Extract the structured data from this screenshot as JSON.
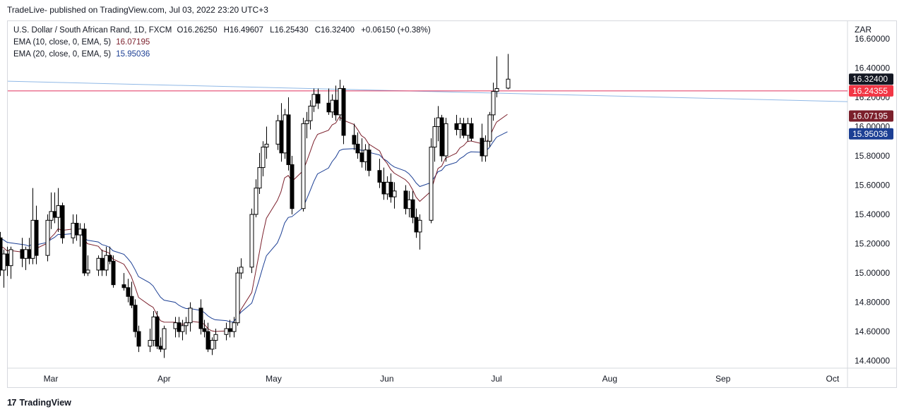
{
  "header": {
    "published": "TradeLive- published on TradingView.com, Jul 03, 2022 23:20 UTC+3"
  },
  "legend": {
    "symbol": "U.S. Dollar / South African Rand, 1D, FXCM",
    "o_label": "O",
    "o": "16.26250",
    "h_label": "H",
    "h": "16.49607",
    "l_label": "L",
    "l": "16.25430",
    "c_label": "C",
    "c": "16.32400",
    "change": "+0.06150 (+0.38%)",
    "ema10_label": "EMA (10, close, 0, EMA, 5)",
    "ema10_value": "16.07195",
    "ema20_label": "EMA (20, close, 0, EMA, 5)",
    "ema20_value": "15.95036"
  },
  "footer": {
    "brand": "TradingView",
    "logo_text": "17"
  },
  "colors": {
    "ema10": "#7b1f2b",
    "ema20": "#1c3f94",
    "horizontal_line": "#e0315b",
    "trend_line": "#90b8e6",
    "up_candle": "#ffffff",
    "down_candle": "#000000"
  },
  "chart_data": {
    "type": "candlestick",
    "y_axis_unit": "ZAR",
    "ylim": [
      14.35,
      16.72
    ],
    "y_ticks": [
      "16.60000",
      "16.40000",
      "16.20000",
      "16.00000",
      "15.80000",
      "15.60000",
      "15.40000",
      "15.20000",
      "15.00000",
      "14.80000",
      "14.60000",
      "14.40000"
    ],
    "x_ticks": [
      "Mar",
      "Apr",
      "May",
      "Jun",
      "Jul",
      "Aug",
      "Sep",
      "Oct"
    ],
    "price_labels": [
      {
        "text": "16.32400",
        "value": 16.324,
        "color": "#131722"
      },
      {
        "text": "16.24355",
        "value": 16.24355,
        "color": "#f23645"
      },
      {
        "text": "16.07195",
        "value": 16.07195,
        "color": "#7b1f2b"
      },
      {
        "text": "15.95036",
        "value": 15.95036,
        "color": "#1c3f94"
      }
    ],
    "horizontal_line": {
      "value": 16.24355
    },
    "trend_line": {
      "start": [
        "2022-02-15",
        16.31
      ],
      "end": [
        "2022-10-13",
        16.17
      ]
    },
    "series": [
      {
        "date": "2022-02-15",
        "o": 15.24,
        "h": 15.28,
        "l": 14.98,
        "c": 15.02
      },
      {
        "date": "2022-02-16",
        "o": 15.02,
        "h": 15.16,
        "l": 14.9,
        "c": 15.13
      },
      {
        "date": "2022-02-17",
        "o": 15.13,
        "h": 15.18,
        "l": 14.98,
        "c": 15.05
      },
      {
        "date": "2022-02-18",
        "o": 15.05,
        "h": 15.18,
        "l": 14.96,
        "c": 15.16
      },
      {
        "date": "2022-02-21",
        "o": 15.16,
        "h": 15.24,
        "l": 15.04,
        "c": 15.1
      },
      {
        "date": "2022-02-22",
        "o": 15.1,
        "h": 15.18,
        "l": 15.02,
        "c": 15.16
      },
      {
        "date": "2022-02-23",
        "o": 15.16,
        "h": 15.24,
        "l": 15.06,
        "c": 15.1
      },
      {
        "date": "2022-02-24",
        "o": 15.1,
        "h": 15.58,
        "l": 15.06,
        "c": 15.36
      },
      {
        "date": "2022-02-25",
        "o": 15.36,
        "h": 15.46,
        "l": 15.06,
        "c": 15.12
      },
      {
        "date": "2022-02-28",
        "o": 15.12,
        "h": 15.4,
        "l": 15.08,
        "c": 15.36
      },
      {
        "date": "2022-03-01",
        "o": 15.36,
        "h": 15.55,
        "l": 15.3,
        "c": 15.42
      },
      {
        "date": "2022-03-02",
        "o": 15.42,
        "h": 15.55,
        "l": 15.34,
        "c": 15.38
      },
      {
        "date": "2022-03-03",
        "o": 15.38,
        "h": 15.58,
        "l": 15.28,
        "c": 15.46
      },
      {
        "date": "2022-03-04",
        "o": 15.46,
        "h": 15.48,
        "l": 15.2,
        "c": 15.24
      },
      {
        "date": "2022-03-07",
        "o": 15.24,
        "h": 15.4,
        "l": 15.2,
        "c": 15.34
      },
      {
        "date": "2022-03-08",
        "o": 15.34,
        "h": 15.4,
        "l": 15.22,
        "c": 15.26
      },
      {
        "date": "2022-03-09",
        "o": 15.26,
        "h": 15.34,
        "l": 15.18,
        "c": 15.3
      },
      {
        "date": "2022-03-10",
        "o": 15.3,
        "h": 15.34,
        "l": 14.98,
        "c": 15.0
      },
      {
        "date": "2022-03-11",
        "o": 15.0,
        "h": 15.12,
        "l": 14.98,
        "c": 15.02
      },
      {
        "date": "2022-03-14",
        "o": 15.02,
        "h": 15.12,
        "l": 14.98,
        "c": 15.1
      },
      {
        "date": "2022-03-15",
        "o": 15.1,
        "h": 15.16,
        "l": 14.98,
        "c": 15.02
      },
      {
        "date": "2022-03-16",
        "o": 15.02,
        "h": 15.18,
        "l": 14.98,
        "c": 15.12
      },
      {
        "date": "2022-03-17",
        "o": 15.12,
        "h": 15.18,
        "l": 15.06,
        "c": 15.08
      },
      {
        "date": "2022-03-18",
        "o": 15.08,
        "h": 15.12,
        "l": 14.9,
        "c": 14.92
      },
      {
        "date": "2022-03-21",
        "o": 14.92,
        "h": 15.0,
        "l": 14.88,
        "c": 14.9
      },
      {
        "date": "2022-03-22",
        "o": 14.9,
        "h": 14.96,
        "l": 14.8,
        "c": 14.84
      },
      {
        "date": "2022-03-23",
        "o": 14.84,
        "h": 14.94,
        "l": 14.76,
        "c": 14.78
      },
      {
        "date": "2022-03-24",
        "o": 14.78,
        "h": 14.82,
        "l": 14.56,
        "c": 14.6
      },
      {
        "date": "2022-03-25",
        "o": 14.6,
        "h": 14.64,
        "l": 14.46,
        "c": 14.5
      },
      {
        "date": "2022-03-28",
        "o": 14.5,
        "h": 14.62,
        "l": 14.46,
        "c": 14.54
      },
      {
        "date": "2022-03-29",
        "o": 14.54,
        "h": 14.74,
        "l": 14.5,
        "c": 14.7
      },
      {
        "date": "2022-03-30",
        "o": 14.7,
        "h": 14.74,
        "l": 14.48,
        "c": 14.5
      },
      {
        "date": "2022-03-31",
        "o": 14.5,
        "h": 14.56,
        "l": 14.46,
        "c": 14.48
      },
      {
        "date": "2022-04-01",
        "o": 14.48,
        "h": 14.64,
        "l": 14.42,
        "c": 14.62
      },
      {
        "date": "2022-04-04",
        "o": 14.62,
        "h": 14.7,
        "l": 14.56,
        "c": 14.66
      },
      {
        "date": "2022-04-05",
        "o": 14.66,
        "h": 14.7,
        "l": 14.56,
        "c": 14.6
      },
      {
        "date": "2022-04-06",
        "o": 14.6,
        "h": 14.68,
        "l": 14.54,
        "c": 14.64
      },
      {
        "date": "2022-04-07",
        "o": 14.64,
        "h": 14.7,
        "l": 14.58,
        "c": 14.66
      },
      {
        "date": "2022-04-08",
        "o": 14.66,
        "h": 14.8,
        "l": 14.6,
        "c": 14.76
      },
      {
        "date": "2022-04-11",
        "o": 14.76,
        "h": 14.82,
        "l": 14.58,
        "c": 14.62
      },
      {
        "date": "2022-04-12",
        "o": 14.62,
        "h": 14.68,
        "l": 14.56,
        "c": 14.6
      },
      {
        "date": "2022-04-13",
        "o": 14.6,
        "h": 14.66,
        "l": 14.46,
        "c": 14.48
      },
      {
        "date": "2022-04-14",
        "o": 14.48,
        "h": 14.56,
        "l": 14.44,
        "c": 14.54
      },
      {
        "date": "2022-04-15",
        "o": 14.54,
        "h": 14.62,
        "l": 14.48,
        "c": 14.58
      },
      {
        "date": "2022-04-18",
        "o": 14.58,
        "h": 14.66,
        "l": 14.54,
        "c": 14.62
      },
      {
        "date": "2022-04-19",
        "o": 14.62,
        "h": 14.68,
        "l": 14.56,
        "c": 14.6
      },
      {
        "date": "2022-04-20",
        "o": 14.6,
        "h": 14.7,
        "l": 14.56,
        "c": 14.66
      },
      {
        "date": "2022-04-21",
        "o": 14.66,
        "h": 15.04,
        "l": 14.64,
        "c": 15.0
      },
      {
        "date": "2022-04-22",
        "o": 15.0,
        "h": 15.1,
        "l": 14.96,
        "c": 15.04
      },
      {
        "date": "2022-04-25",
        "o": 15.04,
        "h": 15.44,
        "l": 15.0,
        "c": 15.4
      },
      {
        "date": "2022-04-26",
        "o": 15.4,
        "h": 15.64,
        "l": 15.38,
        "c": 15.58
      },
      {
        "date": "2022-04-27",
        "o": 15.58,
        "h": 15.82,
        "l": 15.54,
        "c": 15.72
      },
      {
        "date": "2022-04-28",
        "o": 15.72,
        "h": 15.9,
        "l": 15.66,
        "c": 15.86
      },
      {
        "date": "2022-04-29",
        "o": 15.86,
        "h": 16.0,
        "l": 15.78,
        "c": 15.88
      },
      {
        "date": "2022-05-02",
        "o": 15.88,
        "h": 16.08,
        "l": 15.84,
        "c": 16.04
      },
      {
        "date": "2022-05-03",
        "o": 16.04,
        "h": 16.16,
        "l": 15.76,
        "c": 15.82
      },
      {
        "date": "2022-05-04",
        "o": 15.82,
        "h": 16.12,
        "l": 15.78,
        "c": 16.08
      },
      {
        "date": "2022-05-05",
        "o": 16.08,
        "h": 16.2,
        "l": 15.7,
        "c": 15.74
      },
      {
        "date": "2022-05-06",
        "o": 15.74,
        "h": 15.8,
        "l": 15.4,
        "c": 15.44
      },
      {
        "date": "2022-05-09",
        "o": 15.44,
        "h": 16.06,
        "l": 15.42,
        "c": 16.02
      },
      {
        "date": "2022-05-10",
        "o": 16.02,
        "h": 16.1,
        "l": 15.92,
        "c": 16.04
      },
      {
        "date": "2022-05-11",
        "o": 16.04,
        "h": 16.18,
        "l": 15.98,
        "c": 16.14
      },
      {
        "date": "2022-05-12",
        "o": 16.14,
        "h": 16.26,
        "l": 16.1,
        "c": 16.22
      },
      {
        "date": "2022-05-13",
        "o": 16.22,
        "h": 16.26,
        "l": 16.12,
        "c": 16.16
      },
      {
        "date": "2022-05-16",
        "o": 16.16,
        "h": 16.26,
        "l": 16.08,
        "c": 16.1
      },
      {
        "date": "2022-05-17",
        "o": 16.1,
        "h": 16.22,
        "l": 16.06,
        "c": 16.18
      },
      {
        "date": "2022-05-18",
        "o": 16.18,
        "h": 16.28,
        "l": 16.04,
        "c": 16.08
      },
      {
        "date": "2022-05-19",
        "o": 16.08,
        "h": 16.32,
        "l": 16.04,
        "c": 16.26
      },
      {
        "date": "2022-05-20",
        "o": 16.26,
        "h": 16.28,
        "l": 15.88,
        "c": 15.94
      },
      {
        "date": "2022-05-23",
        "o": 15.94,
        "h": 16.02,
        "l": 15.84,
        "c": 15.88
      },
      {
        "date": "2022-05-24",
        "o": 15.88,
        "h": 15.96,
        "l": 15.78,
        "c": 15.82
      },
      {
        "date": "2022-05-25",
        "o": 15.82,
        "h": 15.92,
        "l": 15.72,
        "c": 15.76
      },
      {
        "date": "2022-05-26",
        "o": 15.76,
        "h": 15.88,
        "l": 15.7,
        "c": 15.84
      },
      {
        "date": "2022-05-27",
        "o": 15.84,
        "h": 15.88,
        "l": 15.66,
        "c": 15.7
      },
      {
        "date": "2022-05-30",
        "o": 15.7,
        "h": 15.78,
        "l": 15.58,
        "c": 15.62
      },
      {
        "date": "2022-05-31",
        "o": 15.62,
        "h": 15.72,
        "l": 15.5,
        "c": 15.54
      },
      {
        "date": "2022-06-01",
        "o": 15.54,
        "h": 15.66,
        "l": 15.5,
        "c": 15.62
      },
      {
        "date": "2022-06-02",
        "o": 15.62,
        "h": 15.68,
        "l": 15.48,
        "c": 15.52
      },
      {
        "date": "2022-06-03",
        "o": 15.52,
        "h": 15.62,
        "l": 15.44,
        "c": 15.56
      },
      {
        "date": "2022-06-06",
        "o": 15.56,
        "h": 15.6,
        "l": 15.4,
        "c": 15.44
      },
      {
        "date": "2022-06-07",
        "o": 15.44,
        "h": 15.56,
        "l": 15.38,
        "c": 15.5
      },
      {
        "date": "2022-06-08",
        "o": 15.5,
        "h": 15.56,
        "l": 15.34,
        "c": 15.38
      },
      {
        "date": "2022-06-09",
        "o": 15.38,
        "h": 15.44,
        "l": 15.24,
        "c": 15.28
      },
      {
        "date": "2022-06-10",
        "o": 15.28,
        "h": 15.4,
        "l": 15.16,
        "c": 15.36
      },
      {
        "date": "2022-06-13",
        "o": 15.36,
        "h": 15.92,
        "l": 15.34,
        "c": 15.86
      },
      {
        "date": "2022-06-14",
        "o": 15.86,
        "h": 16.06,
        "l": 15.76,
        "c": 16.0
      },
      {
        "date": "2022-06-15",
        "o": 16.0,
        "h": 16.14,
        "l": 15.9,
        "c": 16.06
      },
      {
        "date": "2022-06-16",
        "o": 16.06,
        "h": 16.08,
        "l": 15.76,
        "c": 15.8
      },
      {
        "date": "2022-06-17",
        "o": 15.8,
        "h": 16.06,
        "l": 15.76,
        "c": 16.02
      },
      {
        "date": "2022-06-20",
        "o": 16.02,
        "h": 16.08,
        "l": 15.94,
        "c": 15.98
      },
      {
        "date": "2022-06-21",
        "o": 15.98,
        "h": 16.06,
        "l": 15.92,
        "c": 16.02
      },
      {
        "date": "2022-06-22",
        "o": 16.02,
        "h": 16.06,
        "l": 15.92,
        "c": 15.94
      },
      {
        "date": "2022-06-23",
        "o": 15.94,
        "h": 16.06,
        "l": 15.9,
        "c": 16.02
      },
      {
        "date": "2022-06-24",
        "o": 16.02,
        "h": 16.06,
        "l": 15.9,
        "c": 15.92
      },
      {
        "date": "2022-06-27",
        "o": 15.92,
        "h": 16.02,
        "l": 15.76,
        "c": 15.8
      },
      {
        "date": "2022-06-28",
        "o": 15.8,
        "h": 15.94,
        "l": 15.76,
        "c": 15.9
      },
      {
        "date": "2022-06-29",
        "o": 15.9,
        "h": 16.1,
        "l": 15.86,
        "c": 16.08
      },
      {
        "date": "2022-06-30",
        "o": 16.08,
        "h": 16.3,
        "l": 16.04,
        "c": 16.24
      },
      {
        "date": "2022-07-01",
        "o": 16.24,
        "h": 16.48,
        "l": 16.2,
        "c": 16.26
      },
      {
        "date": "2022-07-04",
        "o": 16.2625,
        "h": 16.49607,
        "l": 16.2543,
        "c": 16.324
      }
    ]
  }
}
